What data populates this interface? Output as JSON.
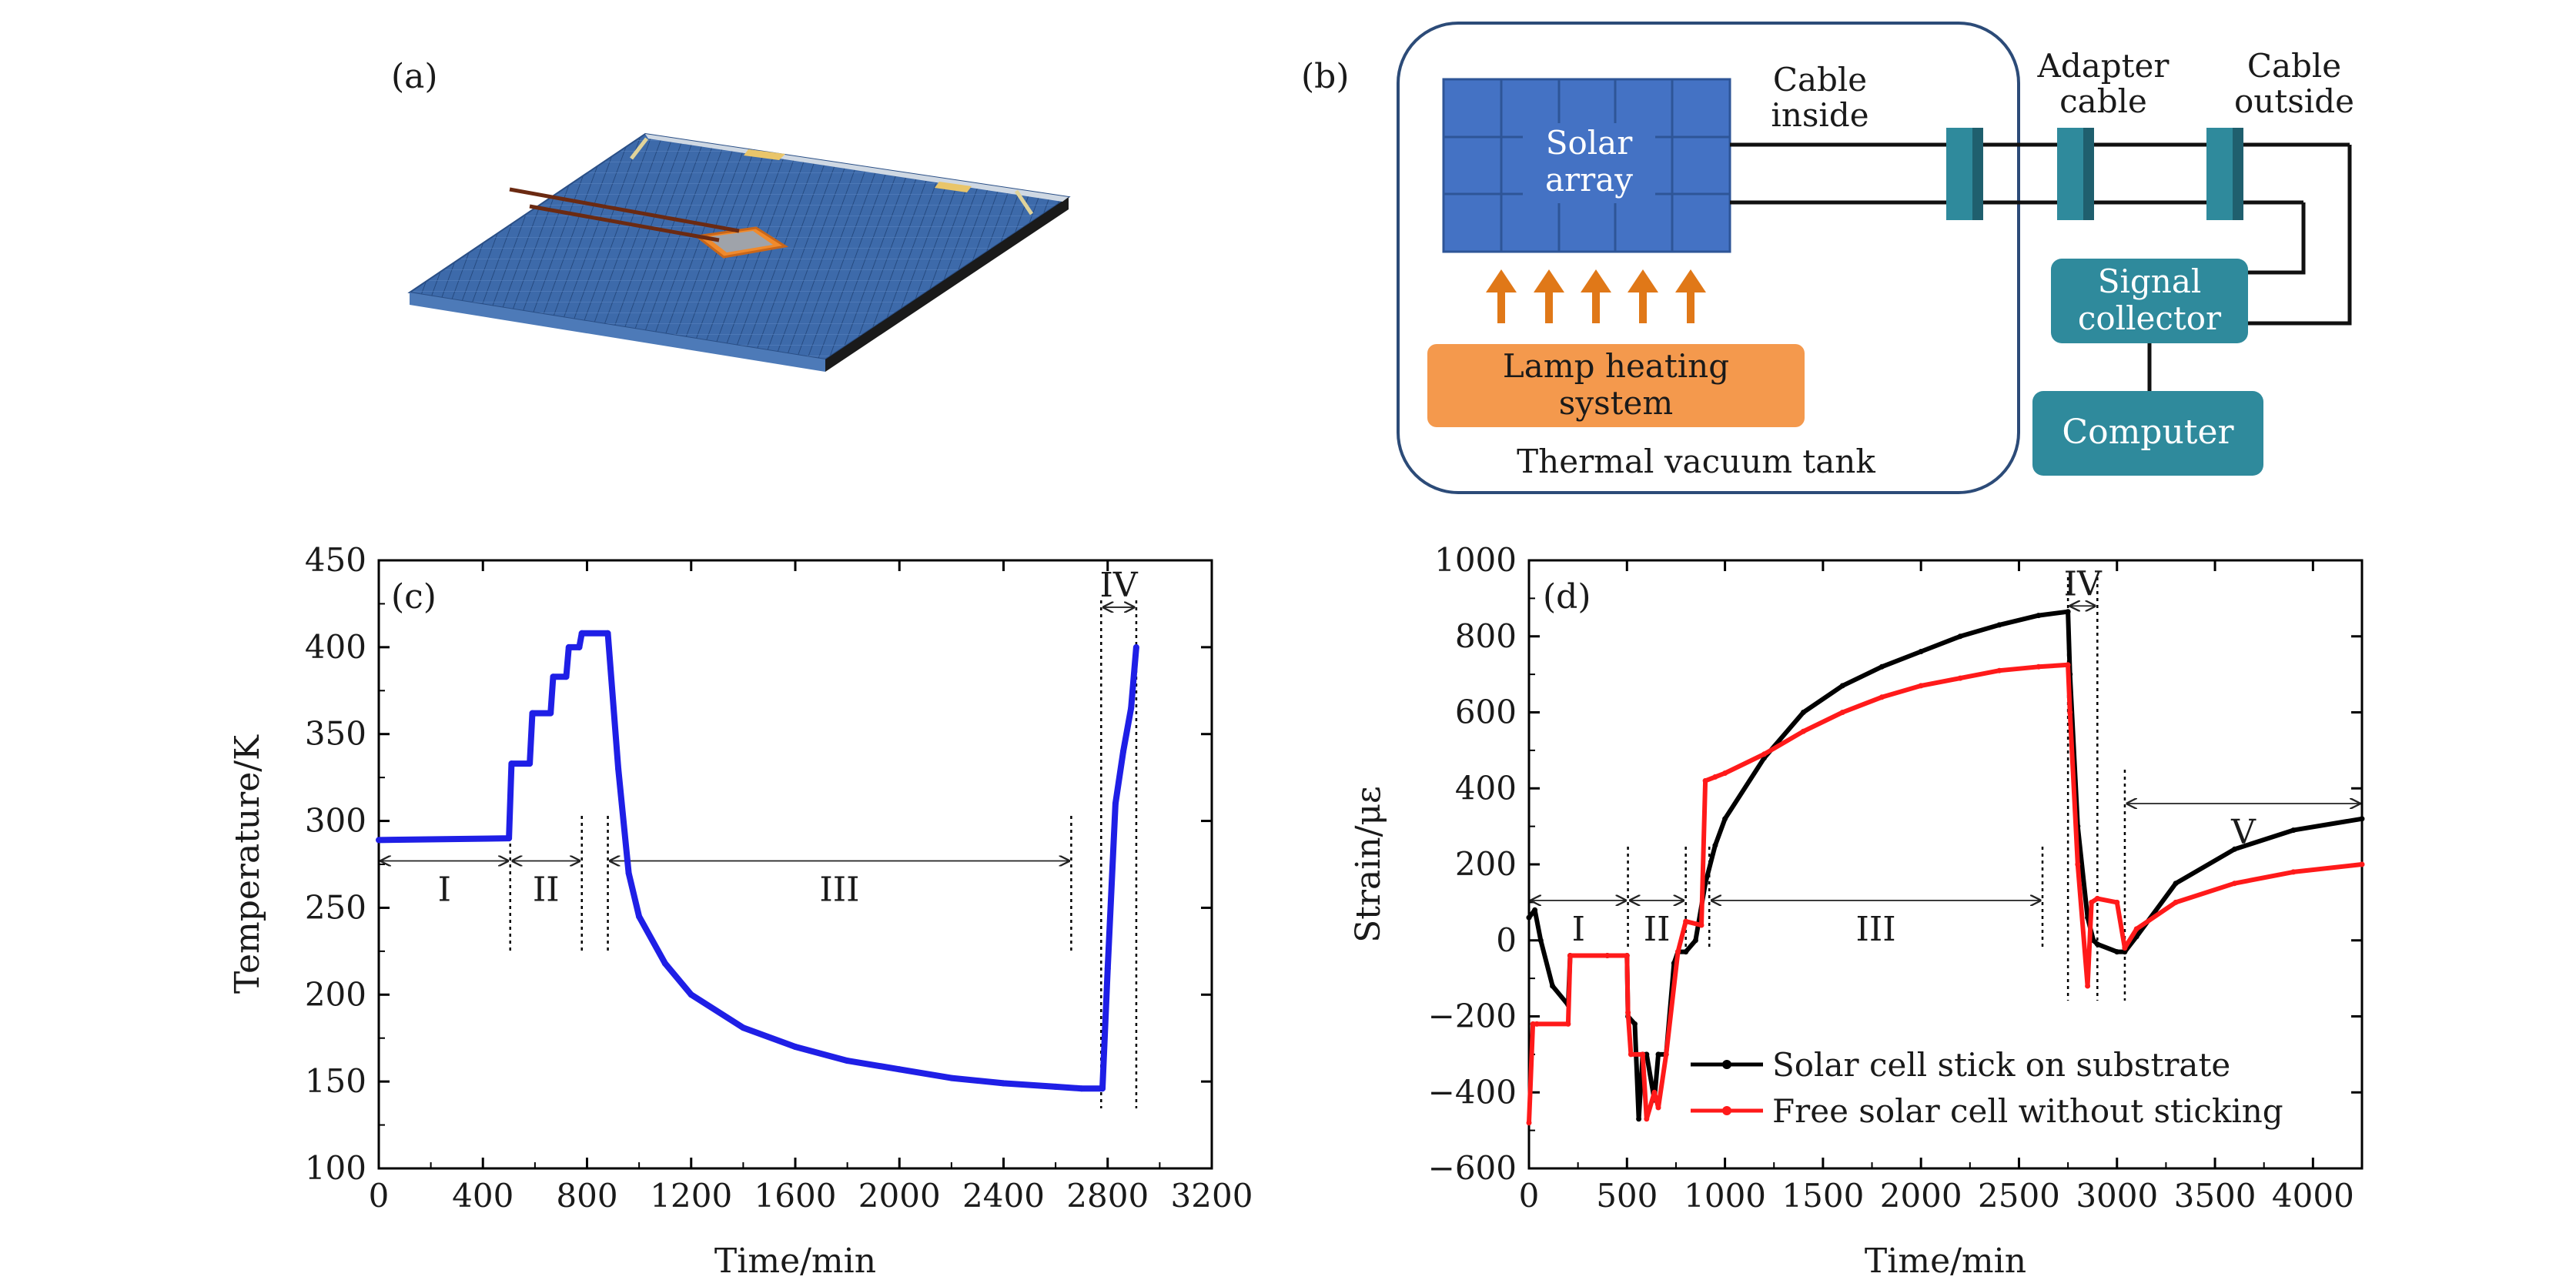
{
  "panel_a": {
    "label": "(a)"
  },
  "panel_b": {
    "label": "(b)",
    "solar_array": [
      "Solar",
      "array"
    ],
    "cable_inside": [
      "Cable",
      "inside"
    ],
    "adapter_cable": [
      "Adapter",
      "cable"
    ],
    "cable_outside": [
      "Cable",
      "outside"
    ],
    "lamp": [
      "Lamp heating",
      "system"
    ],
    "tank": "Thermal vacuum tank",
    "signal_collector": [
      "Signal",
      "collector"
    ],
    "computer": "Computer",
    "colors": {
      "panel_blue": "#3f6db0",
      "teal": "#2f8a9c",
      "orange": "#f29a4a",
      "arrow_orange": "#e07818"
    }
  },
  "chart_data": [
    {
      "type": "scatter",
      "panel_label": "(c)",
      "xlabel": "Time/min",
      "ylabel": "Temperature/K",
      "xlim": [
        0,
        3200
      ],
      "ylim": [
        100,
        450
      ],
      "xticks": [
        0,
        400,
        800,
        1200,
        1600,
        2000,
        2400,
        2800,
        3200
      ],
      "yticks": [
        100,
        150,
        200,
        250,
        300,
        350,
        400,
        450
      ],
      "color": "#1f1fe6",
      "stage_lines": [
        505,
        780,
        880,
        2660,
        2775,
        2910
      ],
      "stages": [
        {
          "name": "I",
          "from": 0,
          "to": 505,
          "y": 277
        },
        {
          "name": "II",
          "from": 505,
          "to": 780,
          "y": 277
        },
        {
          "name": "III",
          "from": 880,
          "to": 2660,
          "y": 277
        },
        {
          "name": "IV",
          "from": 2775,
          "to": 2910,
          "y": 423
        }
      ],
      "series": [
        {
          "x": [
            0,
            500,
            510,
            580,
            590,
            660,
            670,
            720,
            730,
            770,
            780,
            880,
            920,
            960,
            1000,
            1100,
            1200,
            1400,
            1600,
            1800,
            2000,
            2200,
            2400,
            2600,
            2700,
            2780,
            2800,
            2830,
            2860,
            2890,
            2910
          ],
          "y": [
            289,
            290,
            333,
            333,
            362,
            362,
            383,
            383,
            400,
            400,
            408,
            408,
            330,
            270,
            245,
            218,
            200,
            181,
            170,
            162,
            157,
            152,
            149,
            147,
            146,
            146,
            215,
            310,
            340,
            365,
            400
          ]
        }
      ]
    },
    {
      "type": "line",
      "panel_label": "(d)",
      "xlabel": "Time/min",
      "ylabel": "Strain/με",
      "xlim": [
        0,
        4250
      ],
      "ylim": [
        -600,
        1000
      ],
      "xticks": [
        0,
        500,
        1000,
        1500,
        2000,
        2500,
        3000,
        3500,
        4000
      ],
      "yticks": [
        -600,
        -400,
        -200,
        0,
        200,
        400,
        600,
        800,
        1000
      ],
      "stage_lines": [
        505,
        800,
        920,
        2620,
        2750,
        2900,
        3040,
        4250
      ],
      "stages": [
        {
          "name": "I",
          "from": 0,
          "to": 505,
          "y": 105
        },
        {
          "name": "II",
          "from": 505,
          "to": 800,
          "y": 105
        },
        {
          "name": "III",
          "from": 920,
          "to": 2620,
          "y": 105
        },
        {
          "name": "IV",
          "from": 2750,
          "to": 2900,
          "y": 880
        },
        {
          "name": "V",
          "from": 3040,
          "to": 4250,
          "y": 360
        }
      ],
      "legend": {
        "position": "bottom-right"
      },
      "series": [
        {
          "name": "Solar cell stick on substrate",
          "color": "#000000",
          "x": [
            0,
            30,
            60,
            120,
            200,
            210,
            400,
            500,
            505,
            540,
            560,
            580,
            600,
            640,
            660,
            700,
            740,
            760,
            800,
            850,
            900,
            950,
            1000,
            1200,
            1400,
            1600,
            1800,
            2000,
            2200,
            2400,
            2600,
            2750,
            2760,
            2800,
            2850,
            2880,
            2900,
            3000,
            3040,
            3100,
            3300,
            3600,
            3900,
            4250
          ],
          "y": [
            60,
            80,
            0,
            -120,
            -170,
            -40,
            -40,
            -40,
            -200,
            -220,
            -470,
            -300,
            -300,
            -420,
            -300,
            -300,
            -60,
            -30,
            -30,
            0,
            150,
            250,
            320,
            480,
            600,
            670,
            720,
            760,
            800,
            830,
            855,
            865,
            700,
            300,
            60,
            0,
            -10,
            -30,
            -30,
            10,
            150,
            240,
            290,
            320
          ]
        },
        {
          "name": "Free solar cell without sticking",
          "color": "#ff1a1a",
          "x": [
            0,
            20,
            40,
            200,
            210,
            400,
            500,
            505,
            520,
            580,
            600,
            640,
            660,
            700,
            760,
            800,
            880,
            900,
            950,
            1000,
            1200,
            1400,
            1600,
            1800,
            2000,
            2200,
            2400,
            2600,
            2750,
            2760,
            2800,
            2850,
            2870,
            2900,
            3000,
            3040,
            3100,
            3300,
            3600,
            3900,
            4250
          ],
          "y": [
            -480,
            -220,
            -220,
            -220,
            -40,
            -40,
            -40,
            -190,
            -300,
            -300,
            -470,
            -400,
            -440,
            -300,
            -30,
            50,
            40,
            420,
            430,
            440,
            490,
            550,
            600,
            640,
            670,
            690,
            710,
            720,
            725,
            600,
            200,
            -120,
            100,
            110,
            100,
            -20,
            30,
            100,
            150,
            180,
            200
          ]
        }
      ]
    }
  ]
}
